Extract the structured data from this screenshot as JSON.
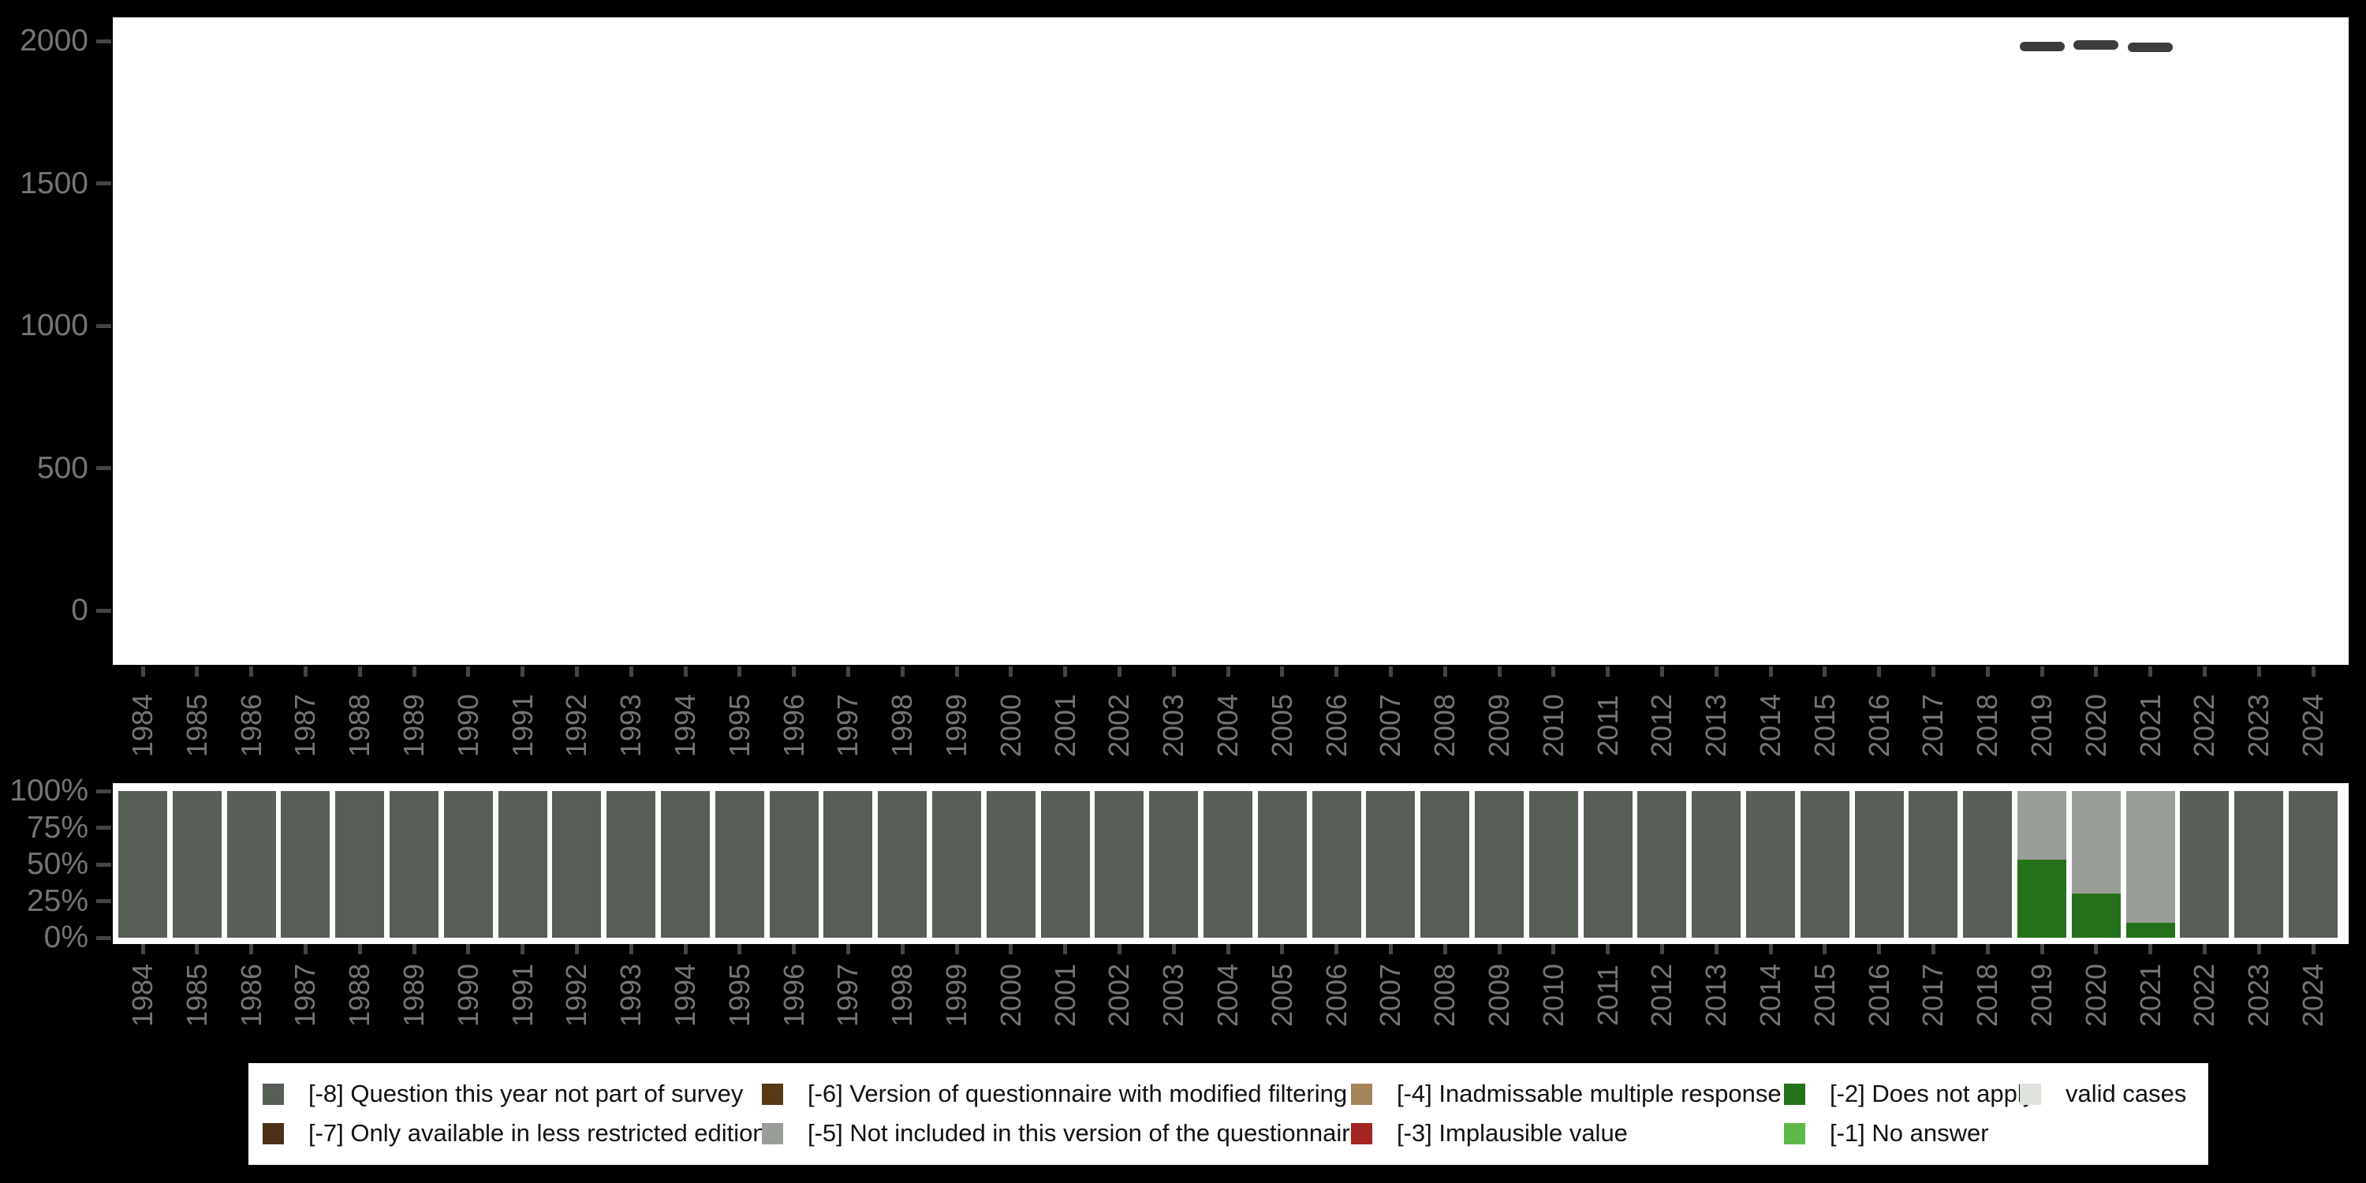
{
  "canvas": {
    "background": "#000000",
    "plot_background": "#FFFFFF",
    "axis_text_color": "#757575",
    "axis_tick_color": "#454545"
  },
  "legend": {
    "items": [
      {
        "code": "-8",
        "label": "[-8] Question this year not part of survey",
        "color": "#565E56",
        "row": 0,
        "col": 0
      },
      {
        "code": "-7",
        "label": "[-7] Only available in less restricted edition",
        "color": "#4A3118",
        "row": 1,
        "col": 0
      },
      {
        "code": "-6",
        "label": "[-6] Version of questionnaire with modified filtering",
        "color": "#573917",
        "row": 0,
        "col": 1
      },
      {
        "code": "-5",
        "label": "[-5] Not included in this version of the questionnaire",
        "color": "#9A9E98",
        "row": 1,
        "col": 1
      },
      {
        "code": "-4",
        "label": "[-4] Inadmissable multiple response",
        "color": "#A5845C",
        "row": 0,
        "col": 2
      },
      {
        "code": "-3",
        "label": "[-3] Implausible value",
        "color": "#A42622",
        "row": 1,
        "col": 2
      },
      {
        "code": "-2",
        "label": "[-2] Does not apply",
        "color": "#25701A",
        "row": 0,
        "col": 3
      },
      {
        "code": "-1",
        "label": "[-1] No answer",
        "color": "#5CB947",
        "row": 1,
        "col": 3
      },
      {
        "code": "valid",
        "label": "valid cases",
        "color": "#DFE3DD",
        "row": 0,
        "col": 4
      }
    ]
  },
  "chart_data": [
    {
      "id": "case-counts",
      "type": "bar",
      "marker": "horizontal-dash",
      "marker_color": "#3C3C3C",
      "title": "",
      "xlabel": "",
      "ylabel": "",
      "ylim": [
        0,
        2000
      ],
      "ytick_labels": [
        "0",
        "500",
        "1000",
        "1500",
        "2000"
      ],
      "yticks": [
        0,
        500,
        1000,
        1500,
        2000
      ],
      "grid": false,
      "x": [
        1984,
        1985,
        1986,
        1987,
        1988,
        1989,
        1990,
        1991,
        1992,
        1993,
        1994,
        1995,
        1996,
        1997,
        1998,
        1999,
        2000,
        2001,
        2002,
        2003,
        2004,
        2005,
        2006,
        2007,
        2008,
        2009,
        2010,
        2011,
        2012,
        2013,
        2014,
        2015,
        2016,
        2017,
        2018,
        2019,
        2020,
        2021,
        2022,
        2023,
        2024
      ],
      "series": [
        {
          "name": "unlabeled-dash-markers",
          "note": "values estimated from axis",
          "values": [
            null,
            null,
            null,
            null,
            null,
            null,
            null,
            null,
            null,
            null,
            null,
            null,
            null,
            null,
            null,
            null,
            null,
            null,
            null,
            null,
            null,
            null,
            null,
            null,
            null,
            null,
            null,
            null,
            null,
            null,
            null,
            null,
            null,
            null,
            null,
            1980,
            1985,
            1978,
            null,
            null,
            null
          ]
        }
      ]
    },
    {
      "id": "missing-value-percentages",
      "type": "stacked-bar-100",
      "title": "",
      "xlabel": "",
      "ylabel": "",
      "ylim": [
        0,
        100
      ],
      "ytick_labels": [
        "0%",
        "25%",
        "50%",
        "75%",
        "100%"
      ],
      "yticks": [
        0,
        25,
        50,
        75,
        100
      ],
      "grid": false,
      "legend_position": "bottom",
      "x": [
        1984,
        1985,
        1986,
        1987,
        1988,
        1989,
        1990,
        1991,
        1992,
        1993,
        1994,
        1995,
        1996,
        1997,
        1998,
        1999,
        2000,
        2001,
        2002,
        2003,
        2004,
        2005,
        2006,
        2007,
        2008,
        2009,
        2010,
        2011,
        2012,
        2013,
        2014,
        2015,
        2016,
        2017,
        2018,
        2019,
        2020,
        2021,
        2022,
        2023,
        2024
      ],
      "series": [
        {
          "name": "[-8] Question this year not part of survey",
          "key": "-8",
          "color": "#565E56",
          "values": [
            100,
            100,
            100,
            100,
            100,
            100,
            100,
            100,
            100,
            100,
            100,
            100,
            100,
            100,
            100,
            100,
            100,
            100,
            100,
            100,
            100,
            100,
            100,
            100,
            100,
            100,
            100,
            100,
            100,
            100,
            100,
            100,
            100,
            100,
            100,
            0,
            0,
            0,
            100,
            100,
            100
          ]
        },
        {
          "name": "[-5] Not included in this version of the questionnaire",
          "key": "-5",
          "color": "#9A9E98",
          "values": [
            0,
            0,
            0,
            0,
            0,
            0,
            0,
            0,
            0,
            0,
            0,
            0,
            0,
            0,
            0,
            0,
            0,
            0,
            0,
            0,
            0,
            0,
            0,
            0,
            0,
            0,
            0,
            0,
            0,
            0,
            0,
            0,
            0,
            0,
            0,
            47,
            70,
            90,
            0,
            0,
            0
          ]
        },
        {
          "name": "[-2] Does not apply",
          "key": "-2",
          "color": "#25701A",
          "values": [
            0,
            0,
            0,
            0,
            0,
            0,
            0,
            0,
            0,
            0,
            0,
            0,
            0,
            0,
            0,
            0,
            0,
            0,
            0,
            0,
            0,
            0,
            0,
            0,
            0,
            0,
            0,
            0,
            0,
            0,
            0,
            0,
            0,
            0,
            0,
            53,
            30,
            10,
            0,
            0,
            0
          ]
        }
      ]
    }
  ]
}
